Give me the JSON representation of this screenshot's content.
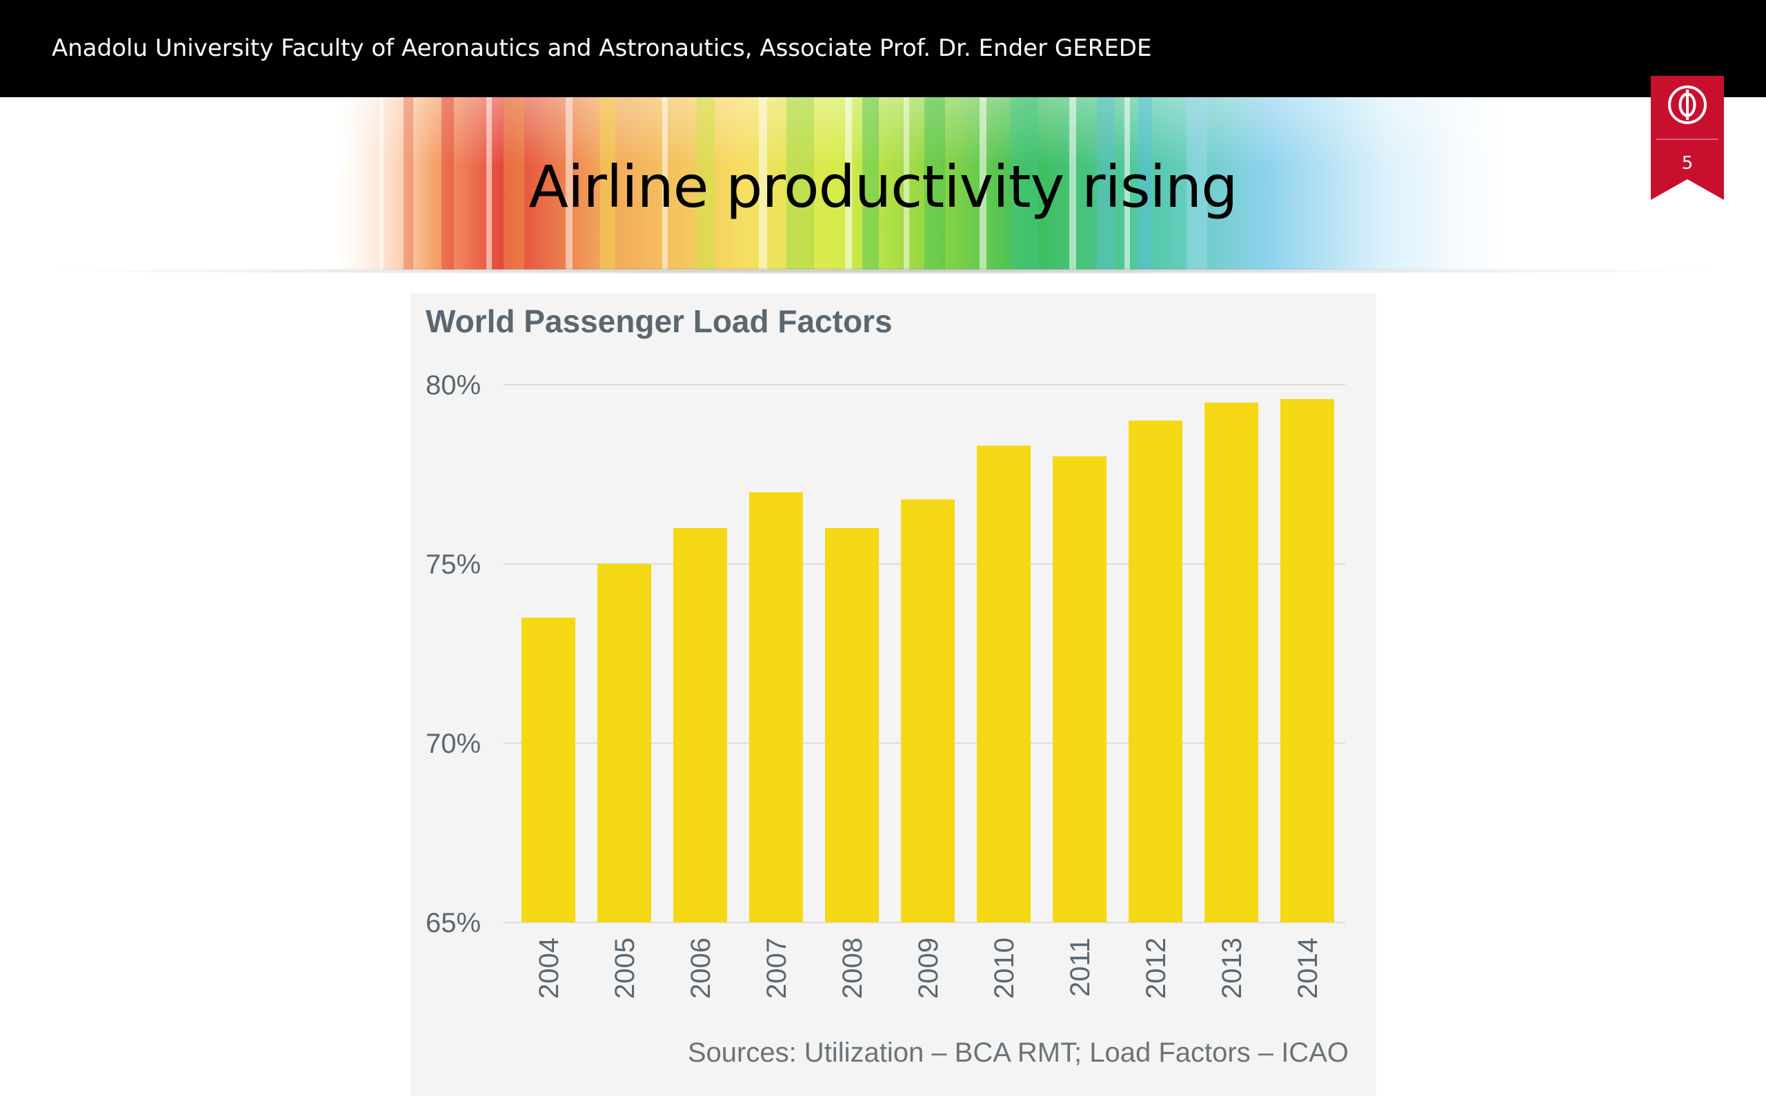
{
  "header": {
    "text": "Anadolu University Faculty of Aeronautics and Astronautics, Associate Prof. Dr. Ender GEREDE"
  },
  "slide": {
    "title": "Airline productivity rising",
    "page_number": "5"
  },
  "colors": {
    "bar": "#f4d914",
    "badge": "#c8102e",
    "header_bg": "#000000",
    "axis_text": "#5b6770",
    "grid": "#dcdcdc"
  },
  "chart_data": {
    "type": "bar",
    "title": "World Passenger Load Factors",
    "categories": [
      "2004",
      "2005",
      "2006",
      "2007",
      "2008",
      "2009",
      "2010",
      "2011",
      "2012",
      "2013",
      "2014"
    ],
    "values": [
      73.5,
      75.0,
      76.0,
      77.0,
      76.0,
      76.8,
      78.3,
      78.0,
      79.0,
      79.5,
      79.6
    ],
    "ylim": [
      65,
      80
    ],
    "yticks": [
      "65%",
      "70%",
      "75%",
      "80%"
    ],
    "ytick_values": [
      65,
      70,
      75,
      80
    ],
    "xlabel": "",
    "ylabel": "",
    "grid": true,
    "legend": "none",
    "source": "Sources: Utilization – BCA RMT; Load Factors – ICAO"
  }
}
